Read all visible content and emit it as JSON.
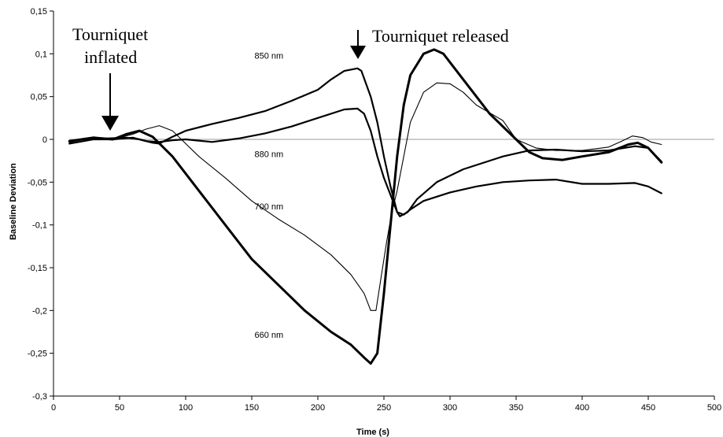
{
  "chart_data": {
    "type": "line",
    "xlabel": "Time (s)",
    "ylabel": "Baseline Deviation",
    "xlim": [
      0,
      500
    ],
    "ylim": [
      -0.3,
      0.15
    ],
    "x_ticks": [
      "0",
      "50",
      "100",
      "150",
      "200",
      "250",
      "300",
      "350",
      "400",
      "450",
      "500"
    ],
    "y_ticks": [
      "0,15",
      "0,1",
      "0,05",
      "0",
      "-0,05",
      "-0,1",
      "-0,15",
      "-0,2",
      "-0,25",
      "-0,3"
    ],
    "grid": false,
    "series": [
      {
        "name": "850 nm",
        "points": [
          [
            12,
            -0.003
          ],
          [
            25,
            0.001
          ],
          [
            40,
            0.001
          ],
          [
            55,
            0.002
          ],
          [
            65,
            0.0
          ],
          [
            75,
            -0.004
          ],
          [
            80,
            -0.005
          ],
          [
            90,
            0.003
          ],
          [
            100,
            0.01
          ],
          [
            120,
            0.018
          ],
          [
            140,
            0.025
          ],
          [
            160,
            0.033
          ],
          [
            180,
            0.045
          ],
          [
            200,
            0.058
          ],
          [
            210,
            0.07
          ],
          [
            220,
            0.08
          ],
          [
            230,
            0.083
          ],
          [
            233,
            0.08
          ],
          [
            240,
            0.05
          ],
          [
            245,
            0.02
          ],
          [
            250,
            -0.02
          ],
          [
            255,
            -0.055
          ],
          [
            260,
            -0.085
          ],
          [
            262,
            -0.09
          ],
          [
            268,
            -0.085
          ],
          [
            275,
            -0.07
          ],
          [
            290,
            -0.05
          ],
          [
            310,
            -0.035
          ],
          [
            340,
            -0.02
          ],
          [
            360,
            -0.013
          ],
          [
            380,
            -0.012
          ],
          [
            400,
            -0.014
          ],
          [
            420,
            -0.013
          ],
          [
            440,
            -0.008
          ],
          [
            450,
            -0.01
          ],
          [
            460,
            -0.026
          ]
        ]
      },
      {
        "name": "880 nm",
        "points": [
          [
            12,
            -0.005
          ],
          [
            30,
            0.0
          ],
          [
            45,
            0.0
          ],
          [
            60,
            0.002
          ],
          [
            70,
            -0.002
          ],
          [
            80,
            -0.003
          ],
          [
            90,
            -0.001
          ],
          [
            100,
            0.0
          ],
          [
            120,
            -0.003
          ],
          [
            140,
            0.001
          ],
          [
            160,
            0.007
          ],
          [
            180,
            0.015
          ],
          [
            200,
            0.025
          ],
          [
            220,
            0.035
          ],
          [
            230,
            0.036
          ],
          [
            235,
            0.03
          ],
          [
            240,
            0.01
          ],
          [
            245,
            -0.02
          ],
          [
            250,
            -0.045
          ],
          [
            255,
            -0.065
          ],
          [
            260,
            -0.085
          ],
          [
            265,
            -0.088
          ],
          [
            270,
            -0.082
          ],
          [
            280,
            -0.072
          ],
          [
            300,
            -0.062
          ],
          [
            320,
            -0.055
          ],
          [
            340,
            -0.05
          ],
          [
            360,
            -0.048
          ],
          [
            380,
            -0.047
          ],
          [
            400,
            -0.052
          ],
          [
            420,
            -0.052
          ],
          [
            440,
            -0.051
          ],
          [
            450,
            -0.055
          ],
          [
            460,
            -0.063
          ]
        ]
      },
      {
        "name": "700 nm",
        "points": [
          [
            12,
            -0.003
          ],
          [
            30,
            0.002
          ],
          [
            45,
            0.0
          ],
          [
            60,
            0.006
          ],
          [
            70,
            0.012
          ],
          [
            80,
            0.016
          ],
          [
            90,
            0.01
          ],
          [
            100,
            -0.005
          ],
          [
            110,
            -0.02
          ],
          [
            130,
            -0.045
          ],
          [
            150,
            -0.072
          ],
          [
            170,
            -0.093
          ],
          [
            190,
            -0.112
          ],
          [
            210,
            -0.135
          ],
          [
            225,
            -0.158
          ],
          [
            235,
            -0.18
          ],
          [
            240,
            -0.2
          ],
          [
            244,
            -0.2
          ],
          [
            248,
            -0.16
          ],
          [
            252,
            -0.12
          ],
          [
            256,
            -0.085
          ],
          [
            260,
            -0.06
          ],
          [
            265,
            -0.02
          ],
          [
            270,
            0.02
          ],
          [
            280,
            0.055
          ],
          [
            290,
            0.066
          ],
          [
            300,
            0.065
          ],
          [
            310,
            0.055
          ],
          [
            320,
            0.04
          ],
          [
            340,
            0.022
          ],
          [
            350,
            0.0
          ],
          [
            365,
            -0.01
          ],
          [
            380,
            -0.013
          ],
          [
            400,
            -0.013
          ],
          [
            420,
            -0.009
          ],
          [
            430,
            -0.002
          ],
          [
            438,
            0.004
          ],
          [
            446,
            0.002
          ],
          [
            452,
            -0.003
          ],
          [
            460,
            -0.006
          ]
        ]
      },
      {
        "name": "660 nm",
        "points": [
          [
            12,
            -0.002
          ],
          [
            30,
            0.002
          ],
          [
            45,
            0.0
          ],
          [
            55,
            0.006
          ],
          [
            65,
            0.01
          ],
          [
            75,
            0.003
          ],
          [
            90,
            -0.02
          ],
          [
            110,
            -0.06
          ],
          [
            130,
            -0.1
          ],
          [
            150,
            -0.14
          ],
          [
            170,
            -0.17
          ],
          [
            190,
            -0.2
          ],
          [
            210,
            -0.225
          ],
          [
            225,
            -0.24
          ],
          [
            235,
            -0.255
          ],
          [
            240,
            -0.262
          ],
          [
            245,
            -0.25
          ],
          [
            250,
            -0.18
          ],
          [
            255,
            -0.1
          ],
          [
            260,
            -0.02
          ],
          [
            265,
            0.04
          ],
          [
            270,
            0.075
          ],
          [
            280,
            0.1
          ],
          [
            288,
            0.105
          ],
          [
            295,
            0.1
          ],
          [
            310,
            0.07
          ],
          [
            330,
            0.03
          ],
          [
            350,
            0.0
          ],
          [
            360,
            -0.015
          ],
          [
            370,
            -0.022
          ],
          [
            385,
            -0.024
          ],
          [
            400,
            -0.02
          ],
          [
            420,
            -0.015
          ],
          [
            435,
            -0.006
          ],
          [
            442,
            -0.004
          ],
          [
            450,
            -0.01
          ],
          [
            460,
            -0.027
          ]
        ]
      }
    ],
    "series_labels": [
      {
        "text": "850 nm",
        "x": 163,
        "y": 0.098
      },
      {
        "text": "880 nm",
        "x": 163,
        "y": -0.017
      },
      {
        "text": "700 nm",
        "x": 163,
        "y": -0.078
      },
      {
        "text": "660 nm",
        "x": 163,
        "y": -0.228
      }
    ],
    "annotations": {
      "inflated_line1": "Tourniquet",
      "inflated_line2": "inflated",
      "released": "Tourniquet released"
    }
  }
}
